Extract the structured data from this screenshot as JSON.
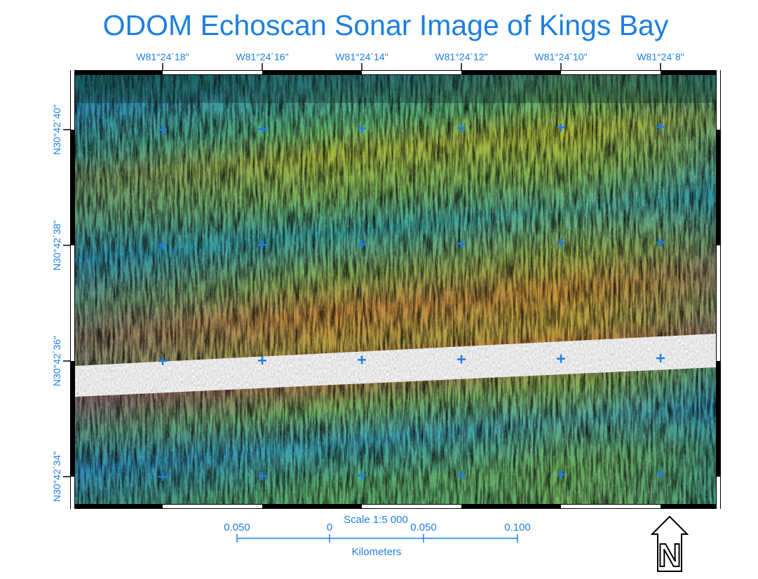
{
  "title": "ODOM Echoscan Sonar Image of Kings Bay",
  "longitude_labels": [
    "W81°24´18\"",
    "W81°24´16\"",
    "W81°24´14\"",
    "W81°24´12\"",
    "W81°24´10\"",
    "W81°24´8\""
  ],
  "latitude_labels": [
    "N30°42´40\"",
    "N30°42´38\"",
    "N30°42´36\"",
    "N30°42´34\""
  ],
  "scale": {
    "title": "Scale 1:5 000",
    "labels": [
      "0.050",
      "0",
      "0.050",
      "0.100"
    ],
    "unit": "Kilometers"
  },
  "north_label": "N"
}
